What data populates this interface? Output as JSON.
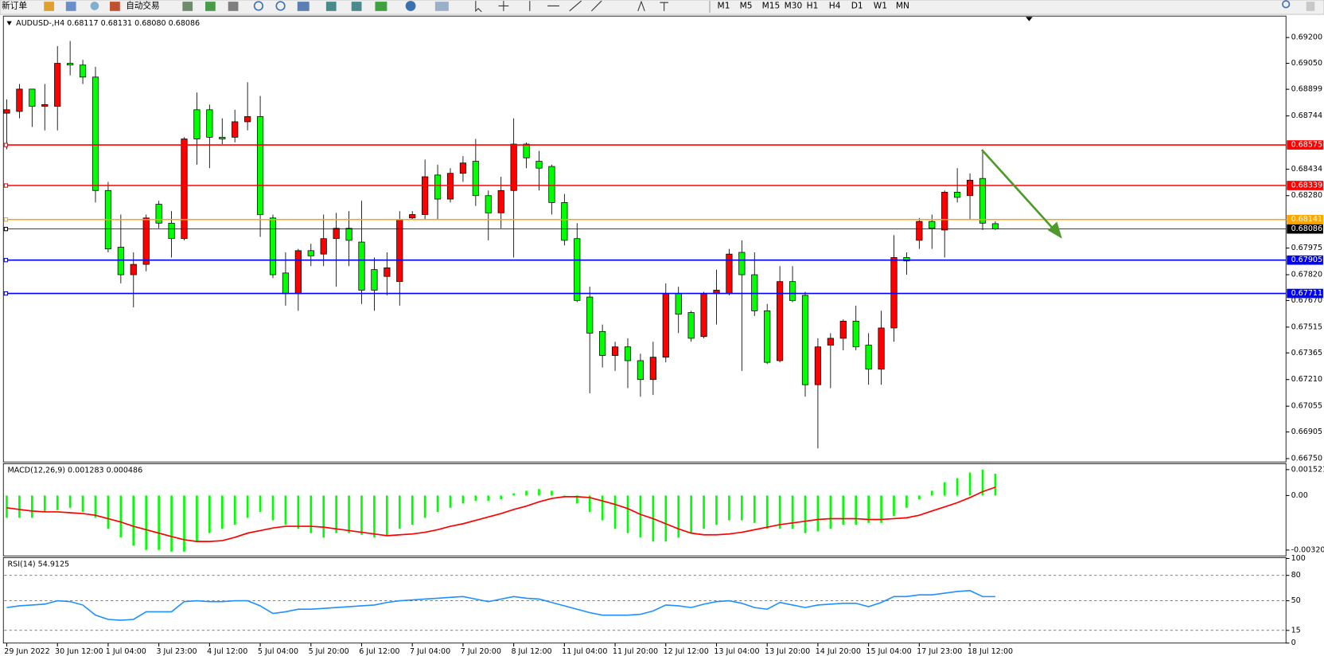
{
  "toolbar": {
    "new_order": "新订单",
    "auto_trading": "自动交易",
    "timeframes": [
      "M1",
      "M5",
      "M15",
      "M30",
      "H1",
      "H4",
      "D1",
      "W1",
      "MN"
    ]
  },
  "chart_data": [
    {
      "type": "candlestick",
      "title": "AUDUSD-,H4  0.68117 0.68131 0.68080 0.68086",
      "up_color": "#ff0000",
      "down_color": "#00ff00",
      "categories": [
        "29 Jun 2022",
        null,
        null,
        null,
        "30 Jun 12:00",
        null,
        null,
        null,
        "1 Jul 04:00",
        null,
        null,
        null,
        "3 Jul 23:00",
        null,
        null,
        null,
        "4 Jul 12:00",
        null,
        null,
        null,
        "5 Jul 04:00",
        null,
        null,
        null,
        "5 Jul 20:00",
        null,
        null,
        null,
        "6 Jul 12:00",
        null,
        null,
        null,
        "7 Jul 04:00",
        null,
        null,
        null,
        "7 Jul 20:00",
        null,
        null,
        null,
        "8 Jul 12:00",
        null,
        null,
        null,
        "11 Jul 04:00",
        null,
        null,
        null,
        "11 Jul 20:00",
        null,
        null,
        null,
        "12 Jul 12:00",
        null,
        null,
        null,
        "13 Jul 04:00",
        null,
        null,
        null,
        "13 Jul 20:00",
        null,
        null,
        null,
        "14 Jul 20:00",
        null,
        null,
        null,
        "15 Jul 04:00",
        null,
        null,
        null,
        "17 Jul 23:00",
        null,
        null,
        null,
        "18 Jul 12:00",
        null,
        null
      ],
      "open": [
        0.6876,
        0.6877,
        0.689,
        0.688,
        0.688,
        0.6905,
        0.6904,
        0.6897,
        0.6831,
        0.6798,
        0.6782,
        0.6788,
        0.6823,
        0.6812,
        0.6803,
        0.6878,
        0.6878,
        0.6862,
        0.6862,
        0.6871,
        0.6874,
        0.6815,
        0.6783,
        0.6771,
        0.6796,
        0.6794,
        0.6803,
        0.6809,
        0.6801,
        0.6785,
        0.6781,
        0.6778,
        0.6815,
        0.6817,
        0.684,
        0.6826,
        0.6841,
        0.6848,
        0.6828,
        0.6818,
        0.6831,
        0.6858,
        0.6848,
        0.6845,
        0.6824,
        0.6803,
        0.6769,
        0.6749,
        0.6735,
        0.674,
        0.6732,
        0.6721,
        0.6734,
        0.6771,
        0.676,
        0.6746,
        0.6771,
        0.6771,
        0.6795,
        0.6782,
        0.6761,
        0.6732,
        0.6778,
        0.677,
        0.6718,
        0.6741,
        0.6745,
        0.6755,
        0.6741,
        0.6727,
        0.6751,
        0.6792,
        0.6802,
        0.6813,
        0.6808,
        0.683,
        0.6828,
        0.6838,
        0.68117
      ],
      "high": [
        0.6884,
        0.6893,
        0.689,
        0.6893,
        0.6915,
        0.6918,
        0.6907,
        0.6903,
        0.6836,
        0.6817,
        0.6795,
        0.6817,
        0.6825,
        0.6819,
        0.6862,
        0.6888,
        0.6881,
        0.6873,
        0.6878,
        0.6894,
        0.6886,
        0.6817,
        0.6795,
        0.6797,
        0.68,
        0.6817,
        0.6818,
        0.6819,
        0.6825,
        0.6792,
        0.6795,
        0.6819,
        0.6819,
        0.6849,
        0.6846,
        0.6844,
        0.6851,
        0.6861,
        0.6831,
        0.6839,
        0.6873,
        0.6859,
        0.6854,
        0.6846,
        0.6829,
        0.6812,
        0.6775,
        0.6753,
        0.6743,
        0.6745,
        0.6736,
        0.6743,
        0.6777,
        0.6775,
        0.6761,
        0.6772,
        0.6785,
        0.6797,
        0.6802,
        0.6795,
        0.6765,
        0.6787,
        0.6787,
        0.6772,
        0.6745,
        0.6748,
        0.6756,
        0.6764,
        0.6748,
        0.6761,
        0.6805,
        0.6795,
        0.6815,
        0.6817,
        0.6831,
        0.6844,
        0.6841,
        0.6855,
        0.68131
      ],
      "low": [
        0.6855,
        0.6873,
        0.6868,
        0.6866,
        0.6866,
        0.6898,
        0.6893,
        0.6824,
        0.6795,
        0.6777,
        0.6763,
        0.6784,
        0.6809,
        0.6792,
        0.6802,
        0.6846,
        0.6844,
        0.6858,
        0.6859,
        0.6866,
        0.6804,
        0.678,
        0.6764,
        0.6761,
        0.6787,
        0.6787,
        0.6775,
        0.6787,
        0.6765,
        0.6761,
        0.677,
        0.6764,
        0.6814,
        0.6814,
        0.6814,
        0.6824,
        0.6836,
        0.6822,
        0.6802,
        0.6809,
        0.6792,
        0.6844,
        0.6831,
        0.6817,
        0.6799,
        0.6766,
        0.6713,
        0.6728,
        0.6726,
        0.6716,
        0.6711,
        0.6712,
        0.6731,
        0.6748,
        0.6743,
        0.6745,
        0.6753,
        0.677,
        0.6726,
        0.6758,
        0.673,
        0.6731,
        0.6766,
        0.6711,
        0.6681,
        0.6716,
        0.6738,
        0.6738,
        0.6718,
        0.6718,
        0.6743,
        0.6782,
        0.6797,
        0.6797,
        0.6792,
        0.6824,
        0.6814,
        0.6808,
        0.6808
      ],
      "close": [
        0.6878,
        0.689,
        0.688,
        0.6881,
        0.6905,
        0.6904,
        0.6897,
        0.6831,
        0.6797,
        0.6782,
        0.6788,
        0.6815,
        0.6812,
        0.6803,
        0.6861,
        0.6861,
        0.6862,
        0.6861,
        0.6871,
        0.6874,
        0.6817,
        0.6782,
        0.6771,
        0.6796,
        0.6793,
        0.6803,
        0.6809,
        0.6802,
        0.6773,
        0.6773,
        0.6786,
        0.6814,
        0.6817,
        0.6839,
        0.6826,
        0.6841,
        0.6847,
        0.6828,
        0.6818,
        0.6831,
        0.6858,
        0.685,
        0.6844,
        0.6824,
        0.6802,
        0.6767,
        0.6748,
        0.6735,
        0.674,
        0.6732,
        0.6721,
        0.6734,
        0.6771,
        0.6759,
        0.6745,
        0.6771,
        0.6773,
        0.6794,
        0.6782,
        0.6761,
        0.6731,
        0.6778,
        0.6767,
        0.6718,
        0.674,
        0.6745,
        0.6755,
        0.674,
        0.6727,
        0.6751,
        0.6792,
        0.679,
        0.6813,
        0.6809,
        0.683,
        0.6827,
        0.6837,
        0.6812,
        0.68086
      ],
      "ylim": [
        0.6674,
        0.6932
      ],
      "yticks": [
        {
          "value": 0.692,
          "label": "0.69200"
        },
        {
          "value": 0.6905,
          "label": "0.69050"
        },
        0.68899,
        0.68744,
        0.68434,
        {
          "value": 0.6828,
          "label": "0.68280"
        },
        0.67975,
        {
          "value": 0.6782,
          "label": "0.67820"
        },
        {
          "value": 0.6767,
          "label": "0.67670"
        },
        0.67515,
        0.67365,
        {
          "value": 0.6721,
          "label": "0.67210"
        },
        0.67055,
        0.66905,
        {
          "value": 0.6675,
          "label": "0.66750"
        }
      ],
      "levels": [
        {
          "value": 0.68575,
          "color": "#ff0000"
        },
        {
          "value": 0.68339,
          "color": "#ff0000"
        },
        {
          "value": 0.68141,
          "color": "#ffa500"
        },
        {
          "value": 0.68086,
          "color": "#000000"
        },
        {
          "value": 0.67905,
          "color": "#0000ff"
        },
        {
          "value": 0.67711,
          "color": "#0000ff"
        }
      ]
    },
    {
      "type": "macd",
      "title": "MACD(12,26,9) 0.001283 0.000486",
      "histogram": {
        "color": "#00ff00",
        "values": [
          -0.00131,
          -0.00131,
          -0.00131,
          -0.00096,
          -0.00086,
          -0.00072,
          -0.00096,
          -0.00131,
          -0.00196,
          -0.00246,
          -0.00295,
          -0.0032,
          -0.0032,
          -0.0033,
          -0.0033,
          -0.0027,
          -0.00221,
          -0.00196,
          -0.00171,
          -0.00131,
          -0.00096,
          -0.00146,
          -0.00171,
          -0.00196,
          -0.00221,
          -0.00246,
          -0.00221,
          -0.00221,
          -0.00231,
          -0.00246,
          -0.00236,
          -0.00196,
          -0.00171,
          -0.00131,
          -0.00096,
          -0.00072,
          -0.00047,
          -0.00032,
          -0.00032,
          -0.00022,
          0.00013,
          0.00028,
          0.00038,
          0.00028,
          3e-05,
          -0.00047,
          -0.00096,
          -0.00146,
          -0.00196,
          -0.00221,
          -0.00246,
          -0.0027,
          -0.0027,
          -0.00246,
          -0.00221,
          -0.00196,
          -0.00171,
          -0.00146,
          -0.00146,
          -0.00161,
          -0.00196,
          -0.00196,
          -0.00196,
          -0.00221,
          -0.00211,
          -0.00196,
          -0.00171,
          -0.00171,
          -0.00161,
          -0.00161,
          -0.00121,
          -0.00072,
          -0.00022,
          0.00028,
          0.00078,
          0.00102,
          0.00135,
          0.00152,
          0.001283
        ]
      },
      "signal": {
        "color": "#ff0000",
        "values": [
          -0.00072,
          -0.00082,
          -0.00091,
          -0.00096,
          -0.00096,
          -0.00101,
          -0.00106,
          -0.00116,
          -0.00136,
          -0.00156,
          -0.00181,
          -0.00201,
          -0.00221,
          -0.00241,
          -0.0026,
          -0.0027,
          -0.0027,
          -0.00265,
          -0.00246,
          -0.00221,
          -0.00206,
          -0.00191,
          -0.00181,
          -0.00181,
          -0.00181,
          -0.00186,
          -0.00196,
          -0.00206,
          -0.00216,
          -0.00226,
          -0.00236,
          -0.00231,
          -0.00226,
          -0.00216,
          -0.00201,
          -0.00181,
          -0.00166,
          -0.00146,
          -0.00126,
          -0.00106,
          -0.00082,
          -0.00062,
          -0.00037,
          -0.00017,
          -7e-05,
          -7e-05,
          -0.00012,
          -0.00032,
          -0.00052,
          -0.00077,
          -0.00111,
          -0.00136,
          -0.00166,
          -0.00196,
          -0.00221,
          -0.00231,
          -0.00231,
          -0.00226,
          -0.00216,
          -0.00201,
          -0.00186,
          -0.00171,
          -0.00161,
          -0.00151,
          -0.00141,
          -0.00136,
          -0.00136,
          -0.00136,
          -0.00141,
          -0.00141,
          -0.00136,
          -0.00131,
          -0.00116,
          -0.00091,
          -0.00067,
          -0.00042,
          -0.00012,
          0.00023,
          0.000486
        ]
      },
      "ylim": [
        -0.00355,
        0.00187
      ],
      "yticks": [
        0.001521,
        {
          "value": 0,
          "label": "0.00"
        },
        -0.003205
      ]
    },
    {
      "type": "rsi",
      "title": "RSI(14) 54.9125",
      "color": "#1e90ff",
      "values": [
        42,
        44,
        45,
        46,
        50,
        49,
        45,
        33,
        28,
        27,
        28,
        37,
        37,
        37,
        49,
        50,
        49,
        49,
        50,
        50,
        44,
        35,
        37,
        40,
        40,
        41,
        42,
        43,
        44,
        45,
        48,
        50,
        51,
        52,
        53,
        54,
        55,
        52,
        49,
        52,
        55,
        53,
        52,
        48,
        44,
        40,
        36,
        33,
        33,
        33,
        34,
        38,
        45,
        44,
        42,
        46,
        49,
        50,
        47,
        42,
        40,
        48,
        45,
        42,
        45,
        46,
        47,
        47,
        43,
        48,
        55,
        55,
        57,
        57,
        59,
        61,
        62,
        55,
        54.9125
      ],
      "ylim": [
        0,
        100
      ],
      "yticks": [
        100,
        80,
        50,
        15,
        0
      ],
      "levels": [
        80,
        50,
        15
      ]
    }
  ]
}
